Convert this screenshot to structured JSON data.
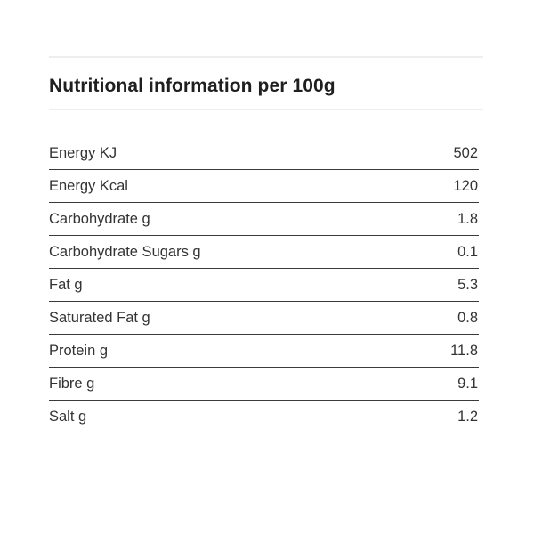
{
  "heading": "Nutritional information per 100g",
  "rows": [
    {
      "label": "Energy KJ",
      "value": "502"
    },
    {
      "label": "Energy Kcal",
      "value": "120"
    },
    {
      "label": "Carbohydrate g",
      "value": "1.8"
    },
    {
      "label": "Carbohydrate Sugars g",
      "value": "0.1"
    },
    {
      "label": "Fat g",
      "value": "5.3"
    },
    {
      "label": "Saturated Fat g",
      "value": "0.8"
    },
    {
      "label": "Protein g",
      "value": "11.8"
    },
    {
      "label": "Fibre g",
      "value": "9.1"
    },
    {
      "label": "Salt g",
      "value": "1.2"
    }
  ]
}
